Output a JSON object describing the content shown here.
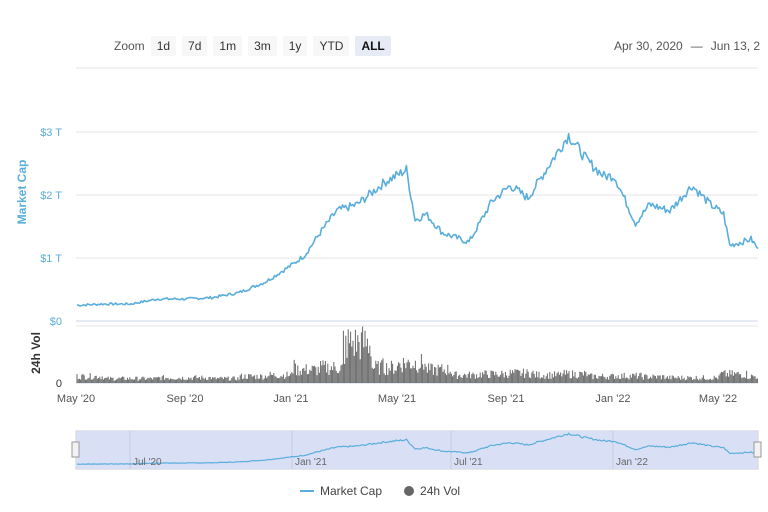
{
  "toolbar": {
    "zoom_label": "Zoom",
    "buttons": [
      "1d",
      "7d",
      "1m",
      "3m",
      "1y",
      "YTD",
      "ALL"
    ],
    "active": "ALL"
  },
  "date_range": {
    "from": "Apr 30, 2020",
    "separator": "—",
    "to": "Jun 13, 2"
  },
  "legend": {
    "market_cap": "Market Cap",
    "volume": "24h Vol"
  },
  "colors": {
    "market_cap": "#5aaedb",
    "volume": "#666666",
    "navigator_fill": "#d6def5"
  },
  "chart_data": {
    "type": "line",
    "x_ticks": [
      "May '20",
      "Sep '20",
      "Jan '21",
      "May '21",
      "Sep '21",
      "Jan '22",
      "May '22"
    ],
    "navigator_ticks": [
      "Jul '20",
      "Jan '21",
      "Jul '21",
      "Jan '22"
    ],
    "y_axis": {
      "label": "Market Cap",
      "ticks": [
        "$0",
        "$1 T",
        "$2 T",
        "$3 T"
      ],
      "range": [
        0,
        3
      ]
    },
    "volume_axis": {
      "label": "24h Vol",
      "ticks": [
        "0"
      ]
    },
    "series": [
      {
        "name": "Market Cap",
        "unit": "T",
        "x": [
          "2020-05-01",
          "2020-06-01",
          "2020-07-01",
          "2020-08-01",
          "2020-09-01",
          "2020-10-01",
          "2020-11-01",
          "2020-12-01",
          "2021-01-01",
          "2021-01-15",
          "2021-02-01",
          "2021-02-20",
          "2021-03-15",
          "2021-04-15",
          "2021-05-10",
          "2021-05-20",
          "2021-06-01",
          "2021-06-20",
          "2021-07-20",
          "2021-08-15",
          "2021-09-05",
          "2021-09-25",
          "2021-10-20",
          "2021-11-10",
          "2021-12-01",
          "2021-12-20",
          "2022-01-01",
          "2022-01-25",
          "2022-02-10",
          "2022-03-05",
          "2022-03-30",
          "2022-04-20",
          "2022-05-05",
          "2022-05-12",
          "2022-05-25",
          "2022-06-05",
          "2022-06-13"
        ],
        "values": [
          0.25,
          0.27,
          0.27,
          0.35,
          0.35,
          0.37,
          0.45,
          0.62,
          0.9,
          1.05,
          1.4,
          1.75,
          1.85,
          2.2,
          2.4,
          1.6,
          1.7,
          1.4,
          1.25,
          1.9,
          2.15,
          1.95,
          2.5,
          2.95,
          2.55,
          2.3,
          2.3,
          1.55,
          1.85,
          1.75,
          2.15,
          1.85,
          1.7,
          1.2,
          1.25,
          1.3,
          1.15
        ]
      },
      {
        "name": "24h Vol",
        "x": [
          "2020-05",
          "2020-06",
          "2020-07",
          "2020-08",
          "2020-09",
          "2020-10",
          "2020-11",
          "2020-12",
          "2021-01",
          "2021-02",
          "2021-03",
          "2021-04",
          "2021-05",
          "2021-06",
          "2021-07",
          "2021-08",
          "2021-09",
          "2021-10",
          "2021-11",
          "2021-12",
          "2022-01",
          "2022-02",
          "2022-03",
          "2022-04",
          "2022-05",
          "2022-06"
        ],
        "values": [
          0.15,
          0.1,
          0.1,
          0.12,
          0.12,
          0.1,
          0.15,
          0.18,
          0.3,
          0.35,
          0.9,
          0.35,
          0.45,
          0.3,
          0.18,
          0.2,
          0.22,
          0.18,
          0.2,
          0.15,
          0.16,
          0.14,
          0.12,
          0.12,
          0.2,
          0.15
        ]
      }
    ],
    "legend_position": "bottom-center"
  }
}
